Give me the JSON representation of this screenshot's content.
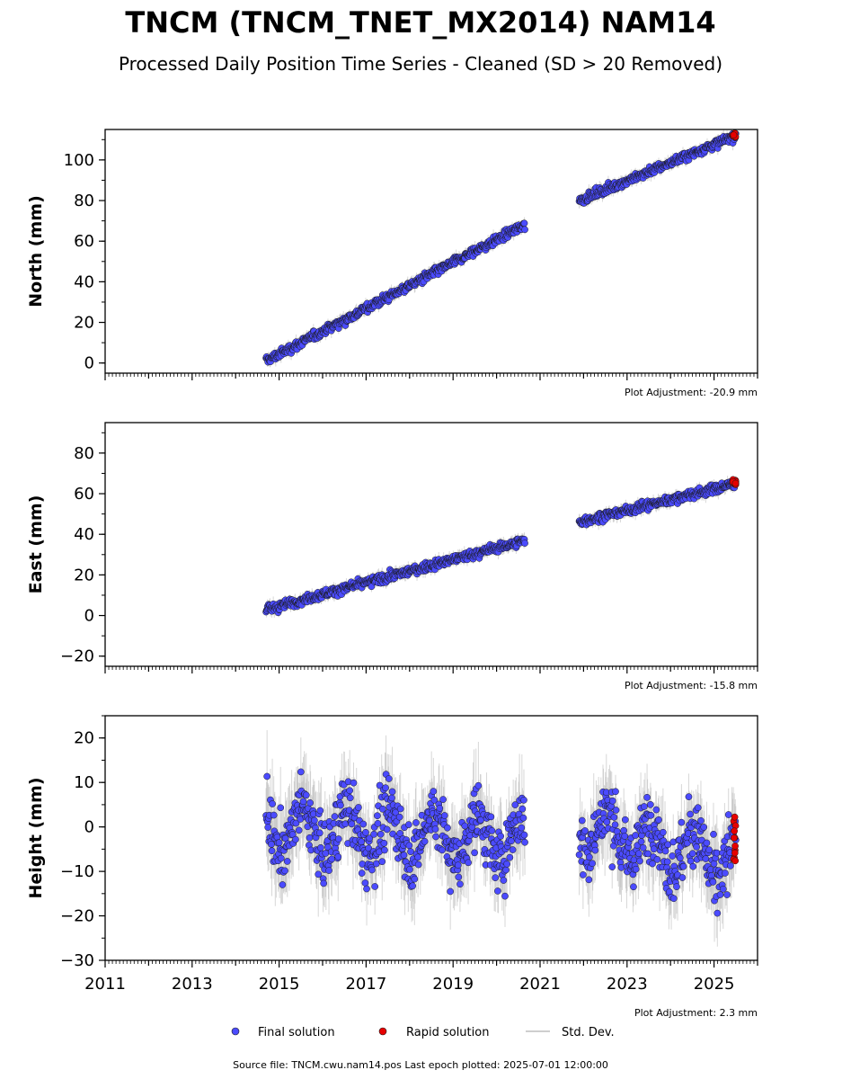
{
  "header": {
    "title": "TNCM (TNCM_TNET_MX2014) NAM14",
    "subtitle": "Processed Daily Position Time Series - Cleaned (SD > 20 Removed)"
  },
  "legend": {
    "final": "Final solution",
    "rapid": "Rapid solution",
    "std": "Std. Dev."
  },
  "footer": {
    "source": "Source file: TNCM.cwu.nam14.pos  Last epoch plotted: 2025-07-01 12:00:00"
  },
  "colors": {
    "final": "#4b4bff",
    "rapid": "#e60000",
    "std": "#bdbdbd",
    "marker_edge": "#1a1a1a"
  },
  "chart_data": [
    {
      "type": "scatter",
      "ylabel": "North (mm)",
      "adjustment": "Plot Adjustment: -20.9 mm",
      "xlim": [
        2011,
        2026
      ],
      "ylim": [
        -5,
        115
      ],
      "yticks": [
        0,
        20,
        40,
        60,
        80,
        100
      ],
      "xticks": [
        2011,
        2013,
        2015,
        2017,
        2019,
        2021,
        2023,
        2025
      ],
      "segments": [
        {
          "x0": 2014.7,
          "x1": 2020.65,
          "y0": 1,
          "y1": 68
        },
        {
          "x0": 2021.9,
          "x1": 2025.5,
          "y0": 80,
          "y1": 112
        }
      ],
      "noise": 1.5,
      "rapid": {
        "x0": 2025.42,
        "x1": 2025.5,
        "y": 112,
        "spread": 1.5
      },
      "series": [
        {
          "name": "Final solution"
        },
        {
          "name": "Rapid solution"
        }
      ]
    },
    {
      "type": "scatter",
      "ylabel": "East (mm)",
      "adjustment": "Plot Adjustment: -15.8 mm",
      "xlim": [
        2011,
        2026
      ],
      "ylim": [
        -25,
        95
      ],
      "yticks": [
        -20,
        0,
        20,
        40,
        60,
        80
      ],
      "xticks": [
        2011,
        2013,
        2015,
        2017,
        2019,
        2021,
        2023,
        2025
      ],
      "segments": [
        {
          "x0": 2014.7,
          "x1": 2020.65,
          "y0": 3,
          "y1": 37
        },
        {
          "x0": 2021.9,
          "x1": 2025.5,
          "y0": 46,
          "y1": 65
        }
      ],
      "noise": 1.5,
      "rapid": {
        "x0": 2025.42,
        "x1": 2025.5,
        "y": 66,
        "spread": 2
      },
      "series": [
        {
          "name": "Final solution"
        },
        {
          "name": "Rapid solution"
        }
      ]
    },
    {
      "type": "scatter",
      "ylabel": "Height (mm)",
      "adjustment": "Plot Adjustment: 2.3 mm",
      "xlim": [
        2011,
        2026
      ],
      "ylim": [
        -30,
        25
      ],
      "yticks": [
        -30,
        -20,
        -10,
        0,
        10,
        20
      ],
      "xticks": [
        2011,
        2013,
        2015,
        2017,
        2019,
        2021,
        2023,
        2025
      ],
      "xticklabels": [
        "2011",
        "2013",
        "2015",
        "2017",
        "2019",
        "2021",
        "2023",
        "2025"
      ],
      "segments": [
        {
          "x0": 2014.7,
          "x1": 2020.65,
          "y0": 0,
          "y1": -3
        },
        {
          "x0": 2021.9,
          "x1": 2025.5,
          "y0": 0,
          "y1": -8
        }
      ],
      "noise": 5,
      "seasonal": 5,
      "rapid": {
        "x0": 2025.45,
        "x1": 2025.5,
        "y": -2,
        "spread": 7
      },
      "series": [
        {
          "name": "Final solution"
        },
        {
          "name": "Rapid solution"
        }
      ]
    }
  ]
}
